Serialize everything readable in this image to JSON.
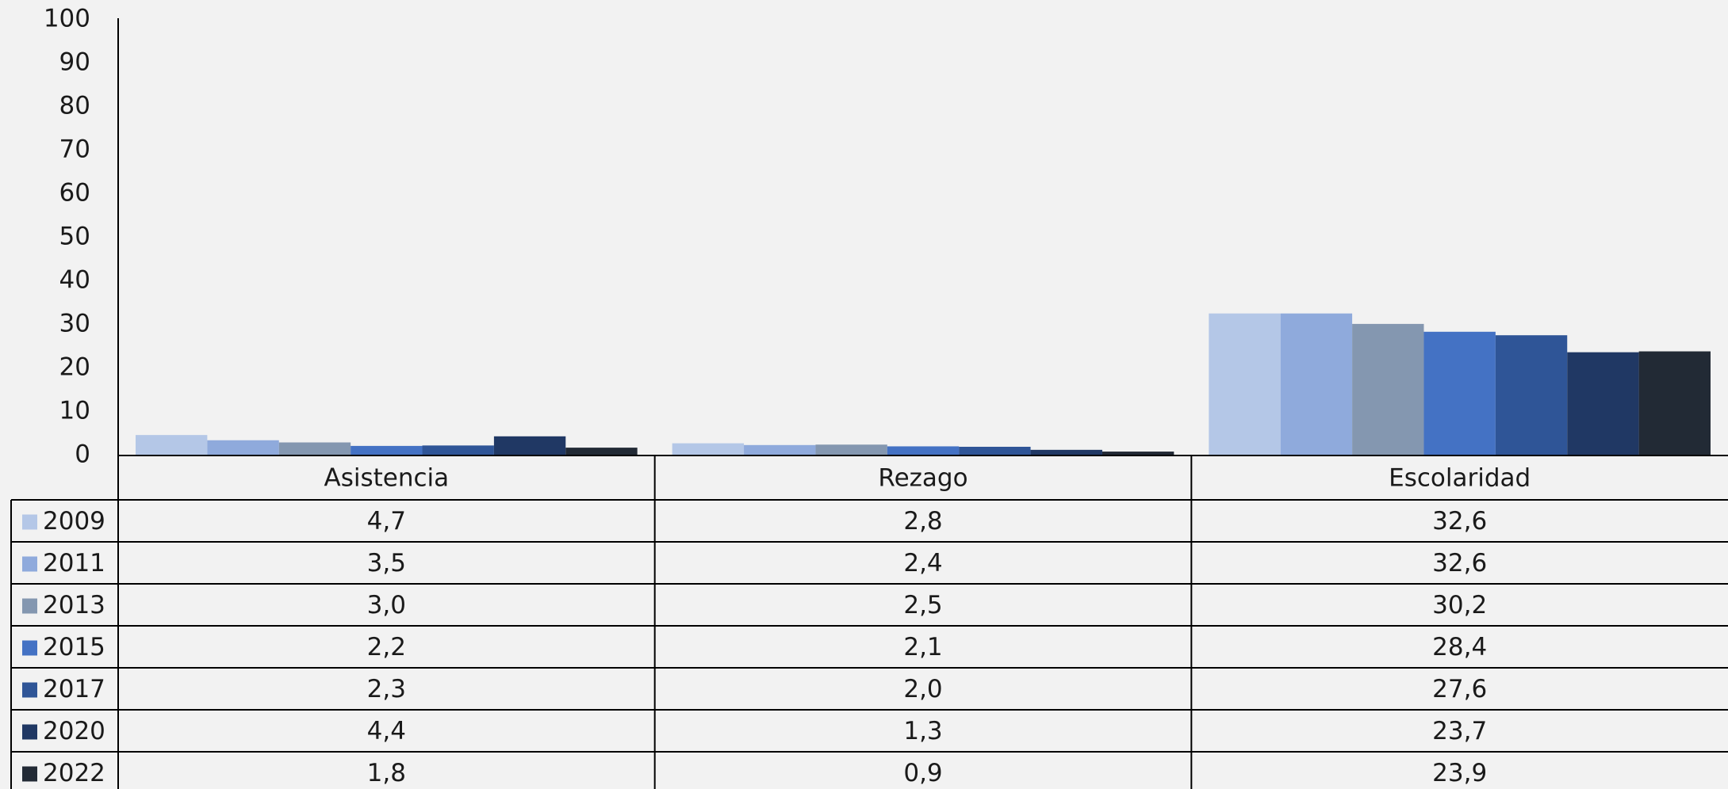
{
  "chart_data": {
    "type": "bar",
    "categories": [
      "Asistencia",
      "Rezago",
      "Escolaridad"
    ],
    "series": [
      {
        "name": "2009",
        "color": "#b4c7e7",
        "values": [
          4.7,
          2.8,
          32.6
        ],
        "value_labels": [
          "4,7",
          "2,8",
          "32,6"
        ]
      },
      {
        "name": "2011",
        "color": "#8faadc",
        "values": [
          3.5,
          2.4,
          32.6
        ],
        "value_labels": [
          "3,5",
          "2,4",
          "32,6"
        ]
      },
      {
        "name": "2013",
        "color": "#8497b0",
        "values": [
          3.0,
          2.5,
          30.2
        ],
        "value_labels": [
          "3,0",
          "2,5",
          "30,2"
        ]
      },
      {
        "name": "2015",
        "color": "#4472c4",
        "values": [
          2.2,
          2.1,
          28.4
        ],
        "value_labels": [
          "2,2",
          "2,1",
          "28,4"
        ]
      },
      {
        "name": "2017",
        "color": "#2f5597",
        "values": [
          2.3,
          2.0,
          27.6
        ],
        "value_labels": [
          "2,3",
          "2,0",
          "27,6"
        ]
      },
      {
        "name": "2020",
        "color": "#203864",
        "values": [
          4.4,
          1.3,
          23.7
        ],
        "value_labels": [
          "4,4",
          "1,3",
          "23,7"
        ]
      },
      {
        "name": "2022",
        "color": "#222a35",
        "values": [
          1.8,
          0.9,
          23.9
        ],
        "value_labels": [
          "1,8",
          "0,9",
          "23,9"
        ]
      }
    ],
    "ylim": [
      0,
      100
    ],
    "yticks": [
      0,
      10,
      20,
      30,
      40,
      50,
      60,
      70,
      80,
      90,
      100
    ],
    "grid": false
  }
}
